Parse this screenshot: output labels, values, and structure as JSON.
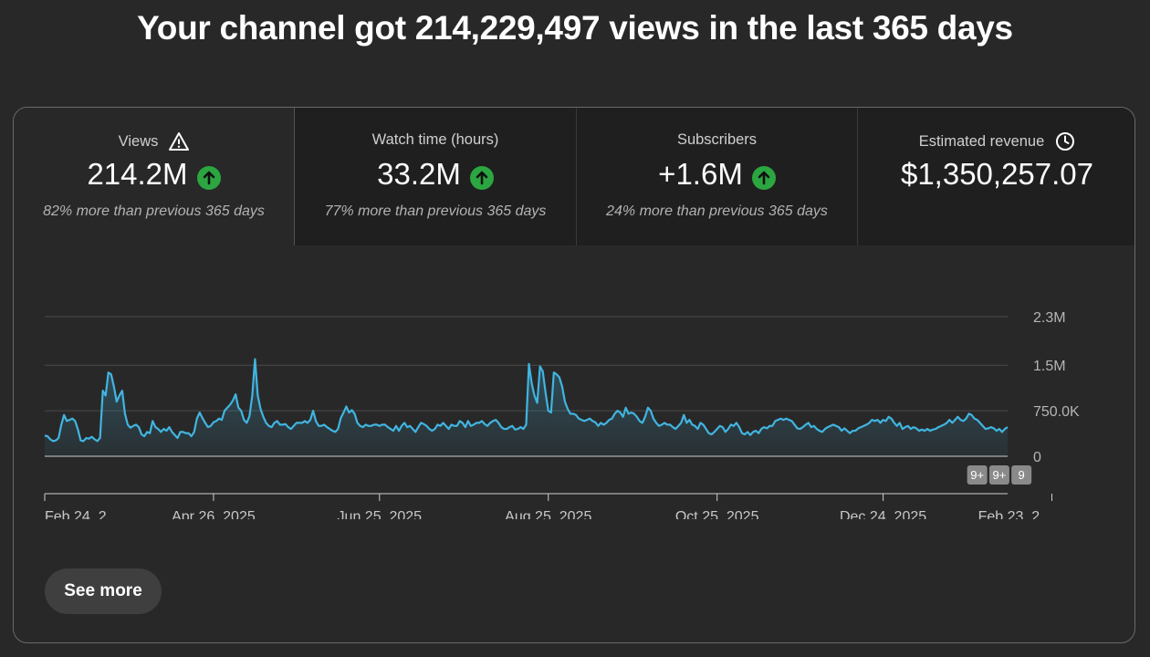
{
  "headline": "Your channel got 214,229,497 views in the last 365 days",
  "metrics": [
    {
      "label": "Views",
      "value": "214.2M",
      "note": "82% more than previous 365 days",
      "label_icon": "warning-icon",
      "trend": "up"
    },
    {
      "label": "Watch time (hours)",
      "value": "33.2M",
      "note": "77% more than previous 365 days",
      "trend": "up"
    },
    {
      "label": "Subscribers",
      "value": "+1.6M",
      "note": "24% more than previous 365 days",
      "trend": "up"
    },
    {
      "label": "Estimated revenue",
      "value": "$1,350,257.07",
      "note": "",
      "label_icon": "clock-icon"
    }
  ],
  "colors": {
    "line": "#41b4e0",
    "trend_up": "#2ba640",
    "background": "#282828",
    "badge": "#8a8a8a"
  },
  "chart_data": {
    "type": "area",
    "series": [
      {
        "values": [
          0.34,
          0.33,
          0.28,
          0.25,
          0.26,
          0.3,
          0.52,
          0.68,
          0.58,
          0.6,
          0.62,
          0.58,
          0.44,
          0.26,
          0.25,
          0.3,
          0.29,
          0.32,
          0.28,
          0.25,
          0.3,
          1.08,
          1.0,
          1.38,
          1.35,
          1.15,
          0.9,
          1.0,
          1.08,
          0.7,
          0.52,
          0.47,
          0.5,
          0.52,
          0.48,
          0.36,
          0.33,
          0.4,
          0.38,
          0.58,
          0.48,
          0.45,
          0.4,
          0.45,
          0.42,
          0.48,
          0.4,
          0.35,
          0.3,
          0.4,
          0.4,
          0.38,
          0.38,
          0.33,
          0.4,
          0.62,
          0.72,
          0.63,
          0.55,
          0.48,
          0.5,
          0.56,
          0.58,
          0.62,
          0.6,
          0.75,
          0.8,
          0.85,
          0.92,
          1.02,
          0.8,
          0.75,
          0.6,
          0.55,
          0.66,
          1.0,
          1.6,
          1.0,
          0.78,
          0.65,
          0.55,
          0.5,
          0.48,
          0.55,
          0.58,
          0.52,
          0.52,
          0.53,
          0.48,
          0.45,
          0.5,
          0.55,
          0.55,
          0.55,
          0.58,
          0.55,
          0.6,
          0.75,
          0.58,
          0.5,
          0.5,
          0.52,
          0.48,
          0.45,
          0.42,
          0.4,
          0.45,
          0.63,
          0.72,
          0.82,
          0.72,
          0.76,
          0.7,
          0.55,
          0.5,
          0.48,
          0.52,
          0.5,
          0.5,
          0.52,
          0.52,
          0.5,
          0.52,
          0.52,
          0.48,
          0.45,
          0.42,
          0.5,
          0.42,
          0.5,
          0.55,
          0.48,
          0.5,
          0.45,
          0.4,
          0.48,
          0.55,
          0.53,
          0.5,
          0.45,
          0.42,
          0.45,
          0.52,
          0.5,
          0.55,
          0.5,
          0.45,
          0.52,
          0.5,
          0.5,
          0.58,
          0.55,
          0.48,
          0.58,
          0.5,
          0.52,
          0.55,
          0.55,
          0.58,
          0.53,
          0.5,
          0.55,
          0.58,
          0.6,
          0.55,
          0.48,
          0.45,
          0.45,
          0.48,
          0.5,
          0.44,
          0.45,
          0.48,
          0.45,
          0.52,
          1.52,
          1.2,
          1.0,
          0.88,
          1.48,
          1.4,
          1.05,
          0.75,
          0.72,
          1.38,
          1.35,
          1.3,
          1.15,
          0.9,
          0.78,
          0.7,
          0.7,
          0.68,
          0.62,
          0.6,
          0.58,
          0.6,
          0.62,
          0.58,
          0.56,
          0.5,
          0.55,
          0.52,
          0.55,
          0.6,
          0.62,
          0.7,
          0.75,
          0.72,
          0.65,
          0.8,
          0.7,
          0.72,
          0.7,
          0.65,
          0.58,
          0.55,
          0.65,
          0.8,
          0.75,
          0.62,
          0.55,
          0.5,
          0.52,
          0.55,
          0.52,
          0.52,
          0.48,
          0.45,
          0.5,
          0.55,
          0.68,
          0.55,
          0.6,
          0.52,
          0.5,
          0.45,
          0.55,
          0.52,
          0.45,
          0.38,
          0.36,
          0.4,
          0.45,
          0.5,
          0.48,
          0.4,
          0.45,
          0.52,
          0.5,
          0.55,
          0.48,
          0.38,
          0.36,
          0.4,
          0.35,
          0.4,
          0.42,
          0.38,
          0.45,
          0.48,
          0.46,
          0.5,
          0.5,
          0.58,
          0.6,
          0.62,
          0.6,
          0.62,
          0.6,
          0.58,
          0.52,
          0.46,
          0.45,
          0.48,
          0.52,
          0.55,
          0.48,
          0.5,
          0.45,
          0.42,
          0.4,
          0.45,
          0.48,
          0.5,
          0.52,
          0.5,
          0.48,
          0.42,
          0.46,
          0.42,
          0.38,
          0.42,
          0.42,
          0.46,
          0.48,
          0.5,
          0.52,
          0.55,
          0.6,
          0.58,
          0.6,
          0.55,
          0.6,
          0.58,
          0.65,
          0.62,
          0.55,
          0.5,
          0.55,
          0.45,
          0.48,
          0.5,
          0.45,
          0.48,
          0.46,
          0.42,
          0.44,
          0.42,
          0.45,
          0.42,
          0.44,
          0.45,
          0.48,
          0.5,
          0.52,
          0.55,
          0.6,
          0.55,
          0.6,
          0.65,
          0.6,
          0.58,
          0.62,
          0.7,
          0.68,
          0.62,
          0.6,
          0.55,
          0.5,
          0.45,
          0.46,
          0.48,
          0.46,
          0.42,
          0.45,
          0.4,
          0.45,
          0.48
        ]
      }
    ],
    "value_unit": "M views",
    "ylim": [
      0,
      2.3
    ],
    "y_ticks": [
      "0",
      "750.0K",
      "1.5M",
      "2.3M"
    ],
    "y_tick_values": [
      0,
      0.75,
      1.5,
      2.3
    ],
    "x_ticks": [
      "Feb 24, 2...",
      "Apr 26, 2025",
      "Jun 25, 2025",
      "Aug 25, 2025",
      "Oct 25, 2025",
      "Dec 24, 2025",
      "Feb 23, 2..."
    ],
    "x_tick_index": [
      0,
      61,
      121,
      182,
      243,
      303,
      364
    ],
    "annotation_badges": [
      {
        "text": "9+",
        "index": 337
      },
      {
        "text": "9+",
        "index": 345
      },
      {
        "text": "9",
        "index": 353
      }
    ],
    "grid": true
  },
  "see_more_label": "See more"
}
